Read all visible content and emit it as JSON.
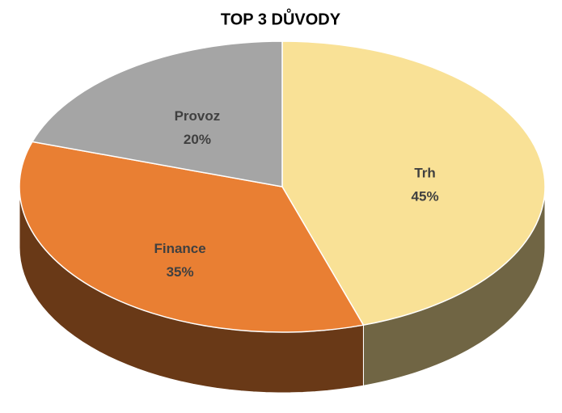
{
  "chart_data": {
    "type": "pie",
    "title": "TOP 3 DŮVODY",
    "categories": [
      "Trh",
      "Finance",
      "Provoz"
    ],
    "values": [
      45,
      35,
      20
    ],
    "value_labels": [
      "45%",
      "35%",
      "20%"
    ],
    "colors": [
      "#f9e196",
      "#e97f33",
      "#a5a5a5"
    ]
  }
}
